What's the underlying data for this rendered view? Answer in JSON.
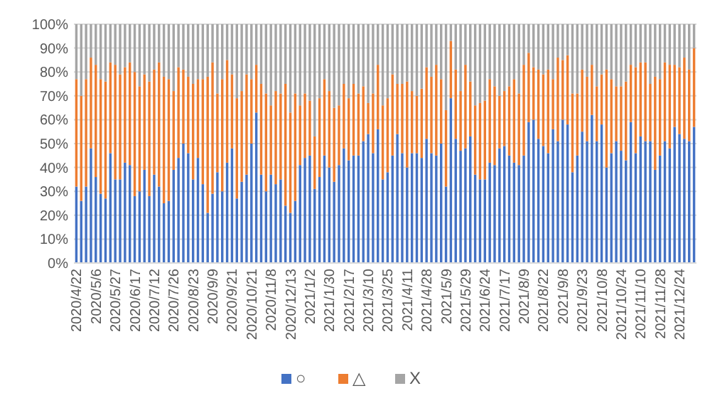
{
  "chart_data": {
    "type": "bar",
    "stacked": true,
    "categories": [
      "2020/4/22",
      null,
      null,
      null,
      "2020/5/6",
      null,
      null,
      null,
      "2020/5/27",
      null,
      null,
      null,
      "2020/6/17",
      null,
      null,
      null,
      "2020/7/12",
      null,
      null,
      null,
      "2020/7/26",
      null,
      null,
      null,
      "2020/8/23",
      null,
      null,
      null,
      "2020/9/9",
      null,
      null,
      null,
      "2020/9/21",
      null,
      null,
      null,
      "2020/10/21",
      null,
      null,
      null,
      "2020/11/8",
      null,
      null,
      null,
      "2020/12/13",
      null,
      null,
      null,
      "2021/1/2",
      null,
      null,
      null,
      "2021/1/30",
      null,
      null,
      null,
      "2021/2/17",
      null,
      null,
      null,
      "2021/3/10",
      null,
      null,
      null,
      "2021/3/25",
      null,
      null,
      null,
      "2021/4/11",
      null,
      null,
      null,
      "2021/4/28",
      null,
      null,
      null,
      "2021/5/9",
      null,
      null,
      null,
      "2021/5/29",
      null,
      null,
      null,
      "2021/6/24",
      null,
      null,
      null,
      "2021/7/17",
      null,
      null,
      null,
      "2021/8/9",
      null,
      null,
      null,
      "2021/8/22",
      null,
      null,
      null,
      "2021/9/8",
      null,
      null,
      null,
      "2021/9/23",
      null,
      null,
      null,
      "2021/10/8",
      null,
      null,
      null,
      "2021/10/24",
      null,
      null,
      null,
      "2021/11/10",
      null,
      null,
      null,
      "2021/11/28",
      null,
      null,
      null,
      "2021/12/24",
      null,
      null,
      null
    ],
    "series": [
      {
        "name": "○",
        "color": "#4472c4",
        "values": [
          32,
          26,
          32,
          48,
          36,
          29,
          27,
          46,
          35,
          35,
          42,
          41,
          28,
          30,
          39,
          28,
          37,
          32,
          25,
          26,
          39,
          44,
          50,
          46,
          35,
          44,
          33,
          21,
          29,
          38,
          30,
          42,
          48,
          27,
          34,
          37,
          50,
          63,
          37,
          30,
          37,
          33,
          35,
          24,
          21,
          26,
          41,
          44,
          45,
          31,
          36,
          45,
          40,
          34,
          41,
          48,
          43,
          45,
          45,
          51,
          54,
          46,
          56,
          35,
          38,
          45,
          54,
          46,
          40,
          46,
          46,
          44,
          52,
          46,
          45,
          50,
          32,
          69,
          52,
          47,
          48,
          53,
          37,
          35,
          35,
          42,
          41,
          48,
          49,
          45,
          42,
          41,
          45,
          59,
          60,
          52,
          49,
          46,
          56,
          51,
          60,
          58,
          38,
          45,
          55,
          51,
          62,
          51,
          58,
          40,
          46,
          51,
          47,
          43,
          59,
          46,
          53,
          51,
          51,
          39,
          45,
          51,
          48,
          57,
          54,
          52,
          51,
          57
        ]
      },
      {
        "name": "△",
        "color": "#ed7d31",
        "values": [
          45,
          44,
          45,
          38,
          47,
          48,
          49,
          38,
          48,
          44,
          40,
          43,
          52,
          44,
          40,
          48,
          44,
          52,
          53,
          51,
          33,
          38,
          31,
          32,
          40,
          33,
          44,
          57,
          55,
          33,
          47,
          43,
          31,
          42,
          38,
          42,
          27,
          20,
          38,
          41,
          29,
          39,
          36,
          51,
          42,
          45,
          25,
          27,
          23,
          22,
          33,
          32,
          32,
          31,
          25,
          27,
          26,
          30,
          26,
          23,
          13,
          25,
          27,
          31,
          31,
          34,
          21,
          29,
          36,
          26,
          24,
          29,
          30,
          32,
          38,
          27,
          32,
          24,
          29,
          25,
          35,
          23,
          29,
          32,
          33,
          35,
          33,
          22,
          23,
          29,
          35,
          30,
          38,
          29,
          22,
          29,
          30,
          35,
          21,
          35,
          25,
          29,
          33,
          26,
          26,
          27,
          21,
          23,
          21,
          41,
          31,
          23,
          27,
          33,
          24,
          36,
          31,
          33,
          24,
          39,
          32,
          33,
          35,
          26,
          28,
          34,
          30,
          33
        ]
      },
      {
        "name": "X",
        "color": "#a5a5a5",
        "values": [
          23,
          30,
          23,
          14,
          17,
          23,
          24,
          16,
          17,
          21,
          18,
          16,
          20,
          26,
          21,
          24,
          19,
          16,
          22,
          23,
          28,
          18,
          19,
          22,
          25,
          23,
          23,
          22,
          16,
          29,
          23,
          15,
          21,
          31,
          28,
          21,
          23,
          17,
          25,
          29,
          34,
          28,
          29,
          25,
          37,
          29,
          34,
          29,
          32,
          47,
          31,
          23,
          28,
          35,
          34,
          25,
          31,
          25,
          29,
          26,
          33,
          29,
          17,
          34,
          31,
          21,
          25,
          25,
          24,
          28,
          30,
          27,
          18,
          22,
          17,
          23,
          36,
          7,
          19,
          28,
          17,
          24,
          34,
          33,
          32,
          23,
          26,
          30,
          28,
          26,
          23,
          29,
          17,
          12,
          18,
          19,
          21,
          19,
          23,
          14,
          15,
          13,
          29,
          29,
          19,
          22,
          17,
          26,
          21,
          19,
          23,
          26,
          26,
          24,
          17,
          18,
          16,
          16,
          25,
          22,
          23,
          16,
          17,
          17,
          18,
          14,
          19,
          10
        ]
      }
    ],
    "ylim": [
      0,
      100
    ],
    "yticks": [
      {
        "value": 0,
        "label": "0%"
      },
      {
        "value": 10,
        "label": "10%"
      },
      {
        "value": 20,
        "label": "20%"
      },
      {
        "value": 30,
        "label": "30%"
      },
      {
        "value": 40,
        "label": "40%"
      },
      {
        "value": 50,
        "label": "50%"
      },
      {
        "value": 60,
        "label": "60%"
      },
      {
        "value": 70,
        "label": "70%"
      },
      {
        "value": 80,
        "label": "80%"
      },
      {
        "value": 90,
        "label": "90%"
      },
      {
        "value": 100,
        "label": "100%"
      }
    ],
    "grid": "y",
    "legend": "bottom"
  }
}
